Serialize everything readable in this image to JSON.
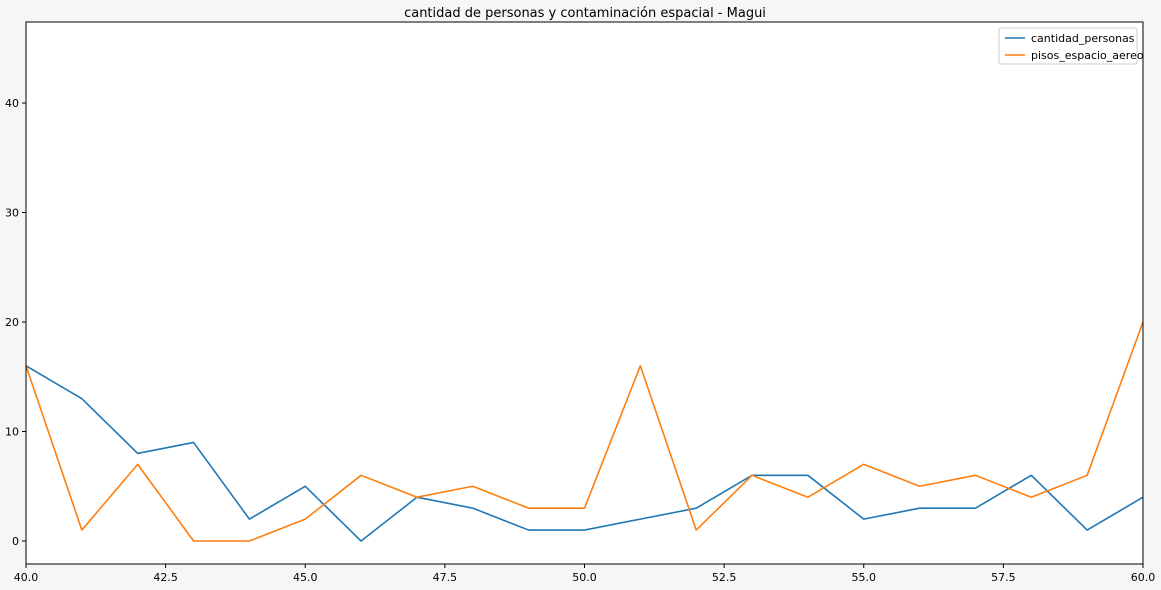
{
  "chart_data": {
    "type": "line",
    "title": "cantidad de personas y contaminación espacial - Magui",
    "xlabel": "",
    "ylabel": "",
    "xlim": [
      40,
      60
    ],
    "ylim": [
      -2.1,
      47.4
    ],
    "xticks": [
      40.0,
      42.5,
      45.0,
      47.5,
      50.0,
      52.5,
      55.0,
      57.5,
      60.0
    ],
    "xtick_labels": [
      "40.0",
      "42.5",
      "45.0",
      "47.5",
      "50.0",
      "52.5",
      "55.0",
      "57.5",
      "60.0"
    ],
    "yticks": [
      0,
      10,
      20,
      30,
      40
    ],
    "ytick_labels": [
      "0",
      "10",
      "20",
      "30",
      "40"
    ],
    "grid": false,
    "legend": "top-right",
    "x": [
      40,
      41,
      42,
      43,
      44,
      45,
      46,
      47,
      48,
      49,
      50,
      51,
      52,
      53,
      54,
      55,
      56,
      57,
      58,
      59,
      60
    ],
    "series": [
      {
        "name": "cantidad_personas",
        "color": "#1f77b4",
        "values": [
          16,
          13,
          8,
          9,
          2,
          5,
          0,
          4,
          3,
          1,
          1,
          2,
          3,
          6,
          6,
          2,
          3,
          3,
          6,
          1,
          4
        ]
      },
      {
        "name": "pisos_espacio_aereo",
        "color": "#ff7f0e",
        "values": [
          16,
          1,
          7,
          0,
          0,
          2,
          6,
          4,
          5,
          3,
          3,
          16,
          1,
          6,
          4,
          7,
          5,
          6,
          4,
          6,
          20
        ]
      }
    ]
  }
}
